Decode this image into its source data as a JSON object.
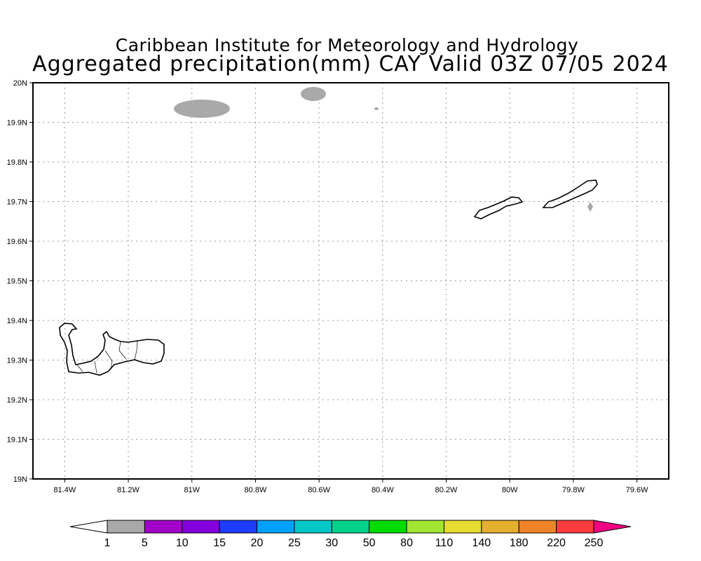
{
  "title": {
    "line1": "Caribbean Institute for Meteorology and Hydrology",
    "line2": "Aggregated precipitation(mm) CAY Valid 03Z 07/05 2024"
  },
  "map": {
    "lon_range": [
      -81.5,
      -79.5
    ],
    "lat_range": [
      19.0,
      20.0
    ],
    "lon_ticks": [
      {
        "v": -81.4,
        "label": "81.4W"
      },
      {
        "v": -81.2,
        "label": "81.2W"
      },
      {
        "v": -81.0,
        "label": "81W"
      },
      {
        "v": -80.8,
        "label": "80.8W"
      },
      {
        "v": -80.6,
        "label": "80.6W"
      },
      {
        "v": -80.4,
        "label": "80.4W"
      },
      {
        "v": -80.2,
        "label": "80.2W"
      },
      {
        "v": -80.0,
        "label": "80W"
      },
      {
        "v": -79.8,
        "label": "79.8W"
      },
      {
        "v": -79.6,
        "label": "79.6W"
      }
    ],
    "lat_ticks": [
      {
        "v": 19.0,
        "label": "19N"
      },
      {
        "v": 19.1,
        "label": "19.1N"
      },
      {
        "v": 19.2,
        "label": "19.2N"
      },
      {
        "v": 19.3,
        "label": "19.3N"
      },
      {
        "v": 19.4,
        "label": "19.4N"
      },
      {
        "v": 19.5,
        "label": "19.5N"
      },
      {
        "v": 19.6,
        "label": "19.6N"
      },
      {
        "v": 19.7,
        "label": "19.7N"
      },
      {
        "v": 19.8,
        "label": "19.8N"
      },
      {
        "v": 19.9,
        "label": "19.9N"
      },
      {
        "v": 20.0,
        "label": "20N"
      }
    ],
    "precip_color": "#a9a9a9"
  },
  "colorbar": {
    "labels": [
      "1",
      "5",
      "10",
      "15",
      "20",
      "25",
      "30",
      "50",
      "80",
      "110",
      "140",
      "180",
      "220",
      "250"
    ],
    "under_color": "#ffffff",
    "colors": [
      "#a9a9a9",
      "#a000c8",
      "#8200dc",
      "#1e3cff",
      "#00a0ff",
      "#00c8c8",
      "#00d28c",
      "#00dc00",
      "#a0e632",
      "#e6dc32",
      "#e6af2d",
      "#f08228",
      "#fa3c3c"
    ],
    "over_color": "#f00082"
  }
}
